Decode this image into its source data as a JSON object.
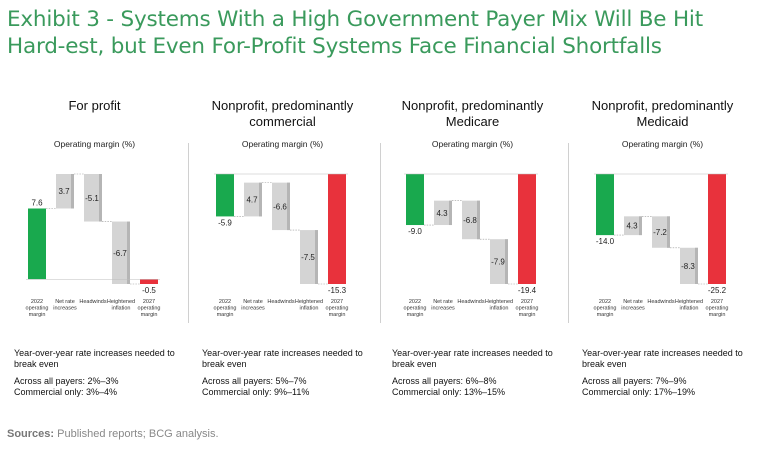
{
  "title": "Exhibit 3 - Systems With a High Government Payer Mix Will Be Hit Hard-est, but Even For-Profit Systems Face Financial Shortfalls",
  "sources": {
    "label": "Sources:",
    "text": " Published reports; BCG analysis."
  },
  "colors": {
    "green": "#19a94e",
    "red": "#e8323c",
    "gray": "#d4d4d4",
    "grayEdge": "#b5b5b5",
    "title": "#3a9a5c"
  },
  "chart_data": [
    {
      "type": "bar",
      "title": "For profit",
      "ylabel": "Operating margin (%)",
      "categories": [
        [
          "2022",
          "operating",
          "margin"
        ],
        [
          "Net rate",
          "increases"
        ],
        [
          "Headwinds"
        ],
        [
          "Heightened",
          "inflation"
        ],
        [
          "2027",
          "operating",
          "margin"
        ]
      ],
      "values": [
        7.6,
        3.7,
        -5.1,
        -6.7,
        -0.5
      ],
      "labels": [
        "7.6",
        "3.7",
        "-5.1",
        "-6.7",
        "-0.5"
      ],
      "notes": {
        "required": "Year-over-year rate increases needed to break even",
        "all": "Across all payers: 2%–3%",
        "commercial": "Commercial only: 3%–4%"
      }
    },
    {
      "type": "bar",
      "title": "Nonprofit, predominantly commercial",
      "ylabel": "Operating margin (%)",
      "categories": [
        [
          "2022",
          "operating",
          "margin"
        ],
        [
          "Net rate",
          "increases"
        ],
        [
          "Headwinds"
        ],
        [
          "Heightened",
          "inflation"
        ],
        [
          "2027",
          "operating",
          "margin"
        ]
      ],
      "values": [
        -5.9,
        4.7,
        -6.6,
        -7.5,
        -15.3
      ],
      "labels": [
        "-5.9",
        "4.7",
        "-6.6",
        "-7.5",
        "-15.3"
      ],
      "notes": {
        "required": "Year-over-year rate increases needed to break even",
        "all": "Across all payers: 5%–7%",
        "commercial": "Commercial only: 9%–11%"
      }
    },
    {
      "type": "bar",
      "title": "Nonprofit, predominantly Medicare",
      "ylabel": "Operating margin (%)",
      "categories": [
        [
          "2022",
          "operating",
          "margin"
        ],
        [
          "Net rate",
          "increases"
        ],
        [
          "Headwinds"
        ],
        [
          "Heightened",
          "inflation"
        ],
        [
          "2027",
          "operating",
          "margin"
        ]
      ],
      "values": [
        -9.0,
        4.3,
        -6.8,
        -7.9,
        -19.4
      ],
      "labels": [
        "-9.0",
        "4.3",
        "-6.8",
        "-7.9",
        "-19.4"
      ],
      "notes": {
        "required": "Year-over-year rate increases needed to break even",
        "all": "Across all payers: 6%–8%",
        "commercial": "Commercial only: 13%–15%"
      }
    },
    {
      "type": "bar",
      "title": "Nonprofit, predominantly Medicaid",
      "ylabel": "Operating margin (%)",
      "categories": [
        [
          "2022",
          "operating",
          "margin"
        ],
        [
          "Net rate",
          "increases"
        ],
        [
          "Headwinds"
        ],
        [
          "Heightened",
          "inflation"
        ],
        [
          "2027",
          "operating",
          "margin"
        ]
      ],
      "values": [
        -14.0,
        4.3,
        -7.2,
        -8.3,
        -25.2
      ],
      "labels": [
        "-14.0",
        "4.3",
        "-7.2",
        "-8.3",
        "-25.2"
      ],
      "notes": {
        "required": "Year-over-year rate increases needed to break even",
        "all": "Across all payers: 7%–9%",
        "commercial": "Commercial only: 17%–19%"
      }
    }
  ]
}
